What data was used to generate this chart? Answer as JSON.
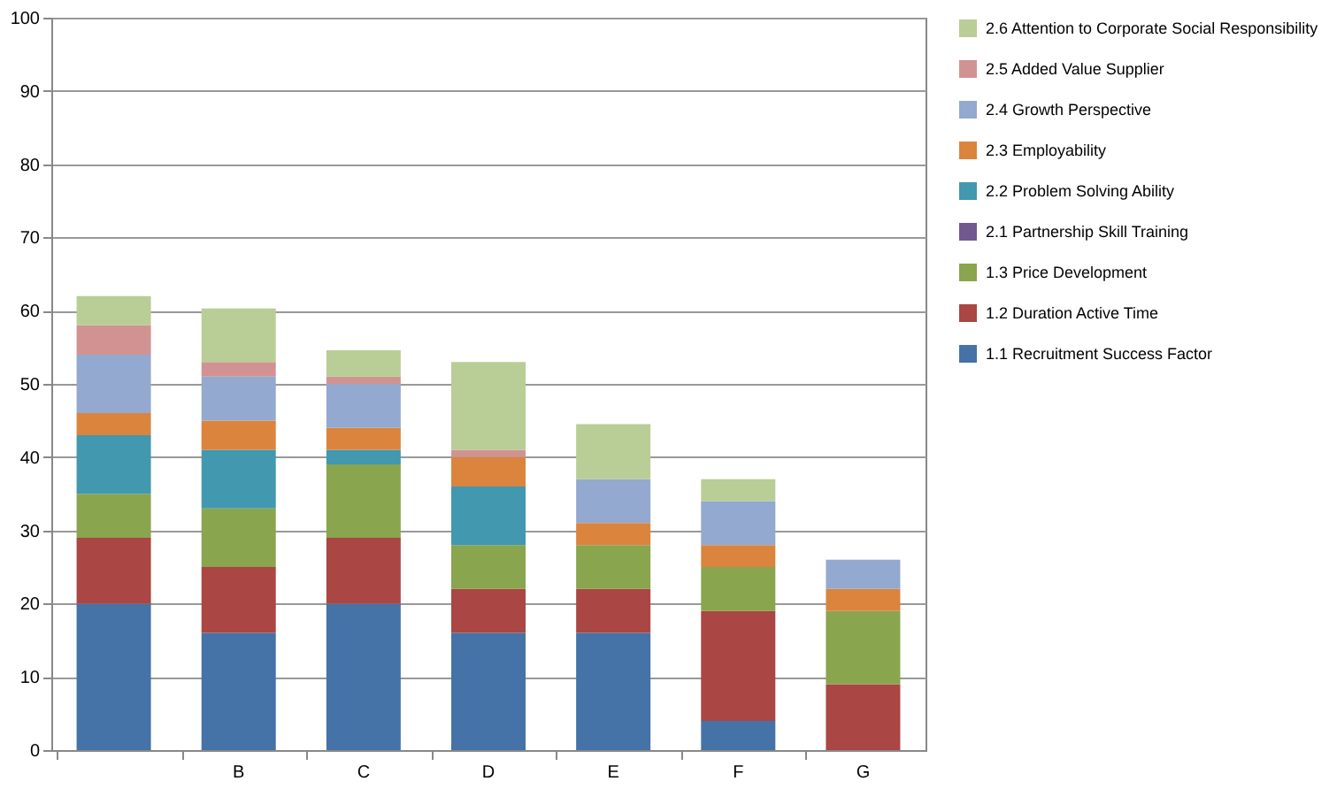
{
  "chart_data": {
    "type": "bar",
    "stacked": true,
    "categories": [
      null,
      "B",
      "C",
      "D",
      "E",
      "F",
      "G"
    ],
    "series": [
      {
        "name": "1.1 Recruitment Success Factor",
        "color": "#4572a7",
        "values": [
          20,
          16,
          20,
          16,
          16,
          4,
          0
        ]
      },
      {
        "name": "1.2 Duration Active Time",
        "color": "#aa4643",
        "values": [
          9,
          9,
          9,
          6,
          6,
          15,
          9
        ]
      },
      {
        "name": "1.3 Price Development",
        "color": "#89a54e",
        "values": [
          6,
          8,
          10,
          6,
          6,
          6,
          10
        ]
      },
      {
        "name": "2.1 Partnership Skill Training",
        "color": "#71588f",
        "values": [
          0,
          0,
          0,
          0,
          0,
          0,
          0
        ]
      },
      {
        "name": "2.2 Problem Solving Ability",
        "color": "#4198af",
        "values": [
          8,
          8,
          2,
          8,
          0,
          0,
          0
        ]
      },
      {
        "name": "2.3 Employability",
        "color": "#db843d",
        "values": [
          3,
          4,
          3,
          4,
          3,
          3,
          3
        ]
      },
      {
        "name": "2.4 Growth Perspective",
        "color": "#93a9cf",
        "values": [
          8,
          6,
          6,
          0,
          6,
          6,
          4
        ]
      },
      {
        "name": "2.5 Added Value Supplier",
        "color": "#d19392",
        "values": [
          4,
          2,
          1,
          1,
          0,
          0,
          0
        ]
      },
      {
        "name": "2.6 Attention to Corporate Social Responsibility",
        "color": "#b9cd96",
        "values": [
          4,
          7.3,
          3.6,
          12,
          7.5,
          3,
          0
        ]
      }
    ],
    "ylim": [
      0,
      100
    ],
    "yticks": [
      0,
      10,
      20,
      30,
      40,
      50,
      60,
      70,
      80,
      90,
      100
    ],
    "grid": "y",
    "legend": "right"
  }
}
